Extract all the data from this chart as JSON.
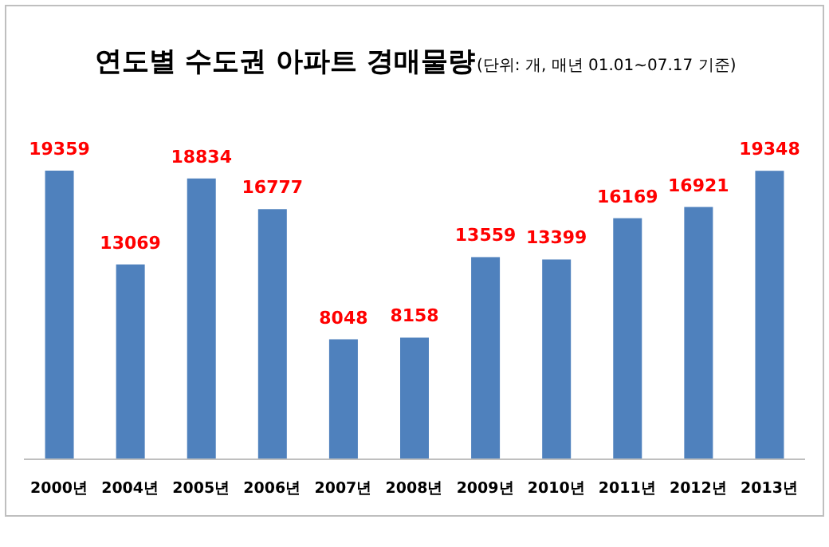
{
  "chart_data": {
    "type": "bar",
    "title": "연도별 수도권 아파트 경매물량",
    "subtitle": "(단위: 개, 매년 01.01~07.17 기준)",
    "categories": [
      "2000년",
      "2004년",
      "2005년",
      "2006년",
      "2007년",
      "2008년",
      "2009년",
      "2010년",
      "2011년",
      "2012년",
      "2013년"
    ],
    "values": [
      19359,
      13069,
      18834,
      16777,
      8048,
      8158,
      13559,
      13399,
      16169,
      16921,
      19348
    ],
    "color": "#4f81bd",
    "data_labels": true
  }
}
